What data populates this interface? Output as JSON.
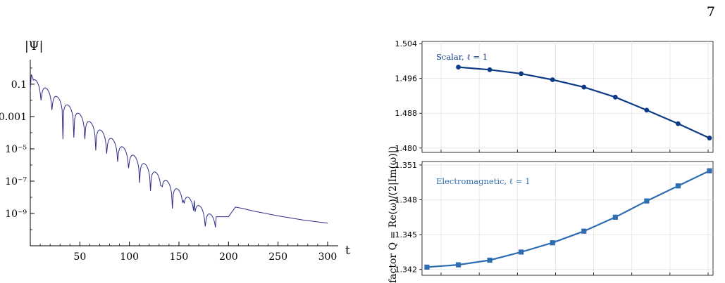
{
  "page_number": "7",
  "chart_data": [
    {
      "type": "line",
      "title": "",
      "ylabel": "|Ψ|",
      "xlabel": "t",
      "yscale": "log",
      "xlim": [
        0,
        305
      ],
      "ylim_log10": [
        -11,
        0.3
      ],
      "x_ticks": [
        50,
        100,
        150,
        200,
        250,
        300
      ],
      "x_tick_labels": [
        "50",
        "100",
        "150",
        "200",
        "250",
        "300"
      ],
      "y_ticks_log10": [
        -1,
        -3,
        -5,
        -7,
        -9
      ],
      "y_tick_labels": [
        "0.1",
        "0.001",
        "10⁻⁵",
        "10⁻⁷",
        "10⁻⁹"
      ],
      "color": "#2c2c88",
      "ringdown": {
        "first_zero_t": 10.8,
        "zero_spacing": 11.05,
        "last_zero_t": 194,
        "envelope_log10_start": -0.5,
        "envelope_log10_slope": -0.047,
        "tail_points": [
          [
            200,
            -9.2
          ],
          [
            207,
            -8.6
          ],
          [
            215,
            -8.7
          ],
          [
            225,
            -8.85
          ],
          [
            250,
            -9.15
          ],
          [
            275,
            -9.4
          ],
          [
            300,
            -9.6
          ]
        ]
      },
      "zero_depths_log10": [
        -2.0,
        -2.6,
        -4.4,
        -4.3,
        -4.4,
        -5.1,
        -5.3,
        -5.8,
        -6.2,
        -7.1,
        -7.6,
        -7.3,
        -8.7,
        -8.2,
        -8.2,
        -9.8,
        -9.2,
        -11.0,
        -10.4
      ]
    },
    {
      "type": "line",
      "ylabel": "factor Q = Re(ω)/(2|Im(ω)|)",
      "panels": [
        {
          "annotation": "Scalar, ℓ = 1",
          "color": "#0d3a87",
          "marker": "circle",
          "ylim": [
            1.479,
            1.5045
          ],
          "y_ticks": [
            1.48,
            1.488,
            1.496,
            1.504
          ],
          "y_tick_labels": [
            "1.480",
            "1.488",
            "1.496",
            "1.504"
          ],
          "x_count": 10,
          "values": [
            null,
            1.4986,
            1.498,
            1.4971,
            1.4957,
            1.494,
            1.4917,
            1.4887,
            1.4856,
            1.4823
          ]
        },
        {
          "annotation": "Electromagnetic, ℓ = 1",
          "color": "#2f6db3",
          "marker": "square",
          "ylim": [
            1.3415,
            1.3513
          ],
          "y_ticks": [
            1.342,
            1.345,
            1.348,
            1.351
          ],
          "y_tick_labels": [
            "1.342",
            "1.345",
            "1.348",
            "1.351"
          ],
          "x_count": 10,
          "values": [
            1.3422,
            1.3424,
            1.3428,
            1.3435,
            1.3443,
            1.3453,
            1.3465,
            1.3479,
            1.3492,
            1.3505
          ]
        }
      ]
    }
  ]
}
